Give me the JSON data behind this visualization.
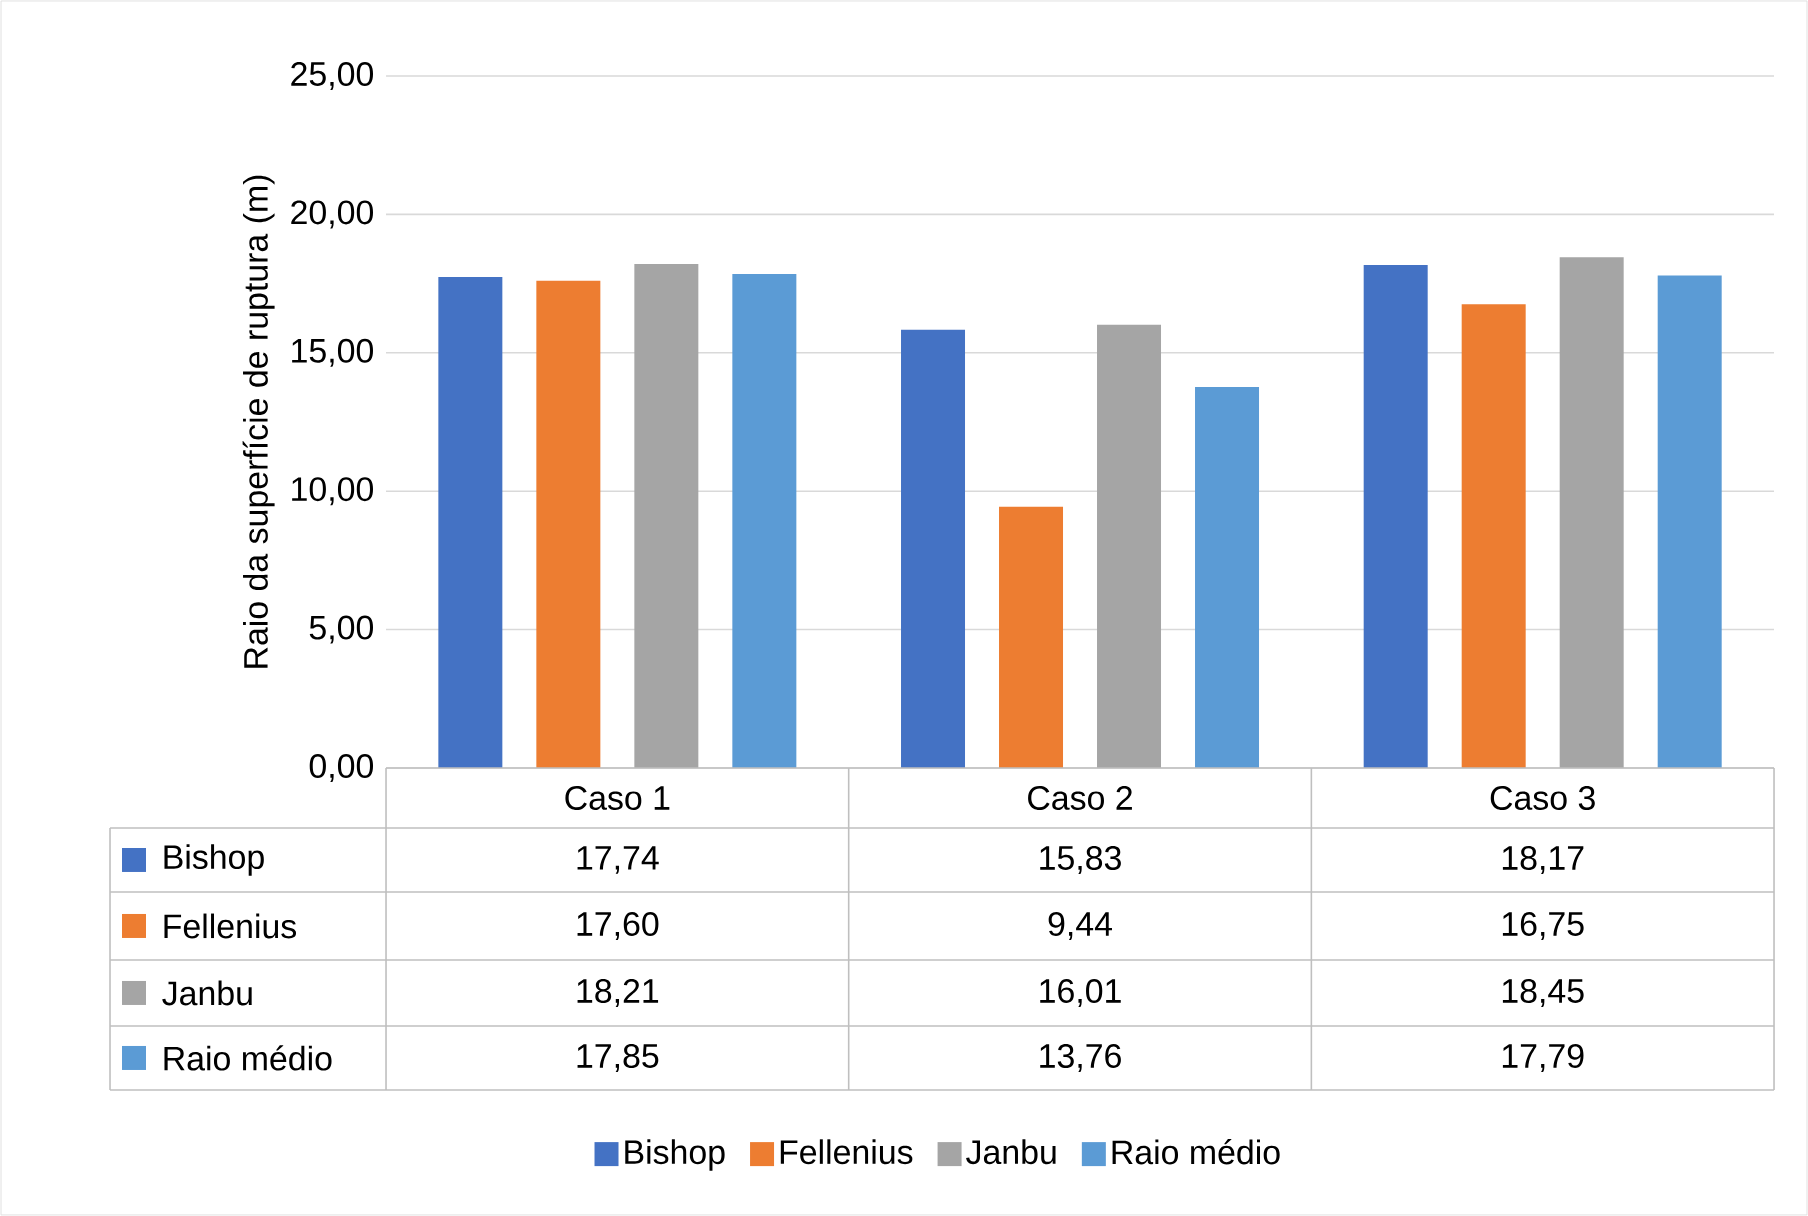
{
  "chart_data": {
    "type": "bar",
    "ylabel": "Raio da superfície de ruptura (m)",
    "categories": [
      "Caso 1",
      "Caso 2",
      "Caso 3"
    ],
    "series": [
      {
        "name": "Bishop",
        "color": "#4472c4",
        "values": [
          17.74,
          15.83,
          18.17
        ],
        "value_labels": [
          "17,74",
          "15,83",
          "18,17"
        ]
      },
      {
        "name": "Fellenius",
        "color": "#ed7d31",
        "values": [
          17.6,
          9.44,
          16.75
        ],
        "value_labels": [
          "17,60",
          "9,44",
          "16,75"
        ]
      },
      {
        "name": "Janbu",
        "color": "#a5a5a5",
        "values": [
          18.21,
          16.01,
          18.45
        ],
        "value_labels": [
          "18,21",
          "16,01",
          "18,45"
        ]
      },
      {
        "name": "Raio médio",
        "color": "#5b9bd5",
        "values": [
          17.85,
          13.76,
          17.79
        ],
        "value_labels": [
          "17,85",
          "13,76",
          "17,79"
        ]
      }
    ],
    "ylim": [
      0,
      25
    ],
    "yticks": [
      {
        "value": 0,
        "label": "0,00"
      },
      {
        "value": 5,
        "label": "5,00"
      },
      {
        "value": 10,
        "label": "10,00"
      },
      {
        "value": 15,
        "label": "15,00"
      },
      {
        "value": 20,
        "label": "20,00"
      },
      {
        "value": 25,
        "label": "25,00"
      }
    ],
    "grid": "y",
    "legend": "bottom"
  }
}
